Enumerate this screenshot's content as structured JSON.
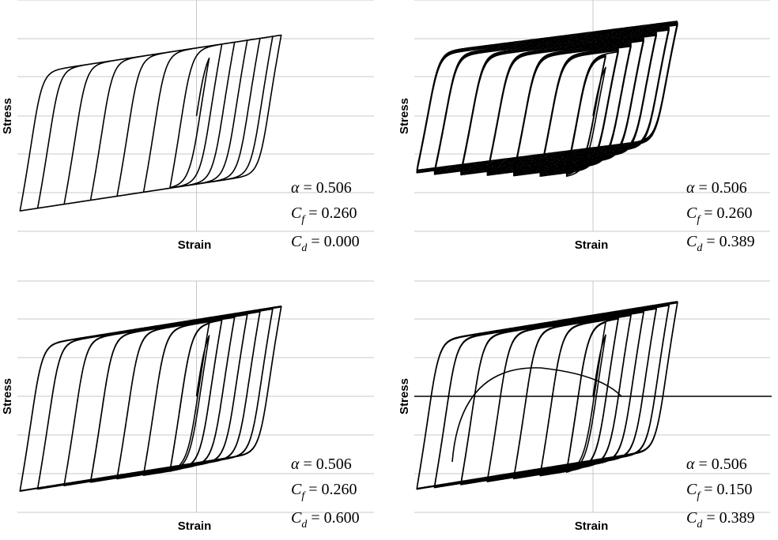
{
  "chart_data": [
    {
      "type": "line",
      "xlabel": "Strain",
      "ylabel": "Stress",
      "grid": true,
      "params": [
        {
          "symbol": "α",
          "sub": "",
          "value": "0.506"
        },
        {
          "symbol": "C",
          "sub": "f",
          "value": "0.260"
        },
        {
          "symbol": "C",
          "sub": "d",
          "value": "0.000"
        }
      ],
      "amplitudes": [
        0.15,
        0.3,
        0.45,
        0.6,
        0.75,
        0.9,
        1.0
      ],
      "cycles_per_amp": 1,
      "drift": 0,
      "zero_line": false,
      "degradation": false
    },
    {
      "type": "line",
      "xlabel": "Strain",
      "ylabel": "Stress",
      "grid": true,
      "params": [
        {
          "symbol": "α",
          "sub": "",
          "value": "0.506"
        },
        {
          "symbol": "C",
          "sub": "f",
          "value": "0.260"
        },
        {
          "symbol": "C",
          "sub": "d",
          "value": "0.389"
        }
      ],
      "amplitudes": [
        0.15,
        0.3,
        0.45,
        0.6,
        0.75,
        0.9,
        1.0
      ],
      "cycles_per_amp": 3,
      "drift": 0.05,
      "zero_line": false,
      "degradation": false
    },
    {
      "type": "line",
      "xlabel": "Strain",
      "ylabel": "Stress",
      "grid": true,
      "params": [
        {
          "symbol": "α",
          "sub": "",
          "value": "0.506"
        },
        {
          "symbol": "C",
          "sub": "f",
          "value": "0.260"
        },
        {
          "symbol": "C",
          "sub": "d",
          "value": "0.600"
        }
      ],
      "amplitudes": [
        0.15,
        0.3,
        0.45,
        0.6,
        0.75,
        0.9,
        1.0
      ],
      "cycles_per_amp": 2,
      "drift": 0.012,
      "zero_line": false,
      "degradation": false
    },
    {
      "type": "line",
      "xlabel": "Strain",
      "ylabel": "Stress",
      "grid": true,
      "params": [
        {
          "symbol": "α",
          "sub": "",
          "value": "0.506"
        },
        {
          "symbol": "C",
          "sub": "f",
          "value": "0.150"
        },
        {
          "symbol": "C",
          "sub": "d",
          "value": "0.389"
        }
      ],
      "amplitudes": [
        0.15,
        0.3,
        0.45,
        0.6,
        0.75,
        0.9,
        1.0
      ],
      "cycles_per_amp": 2,
      "drift": 0.02,
      "zero_line": true,
      "degradation": true
    }
  ]
}
